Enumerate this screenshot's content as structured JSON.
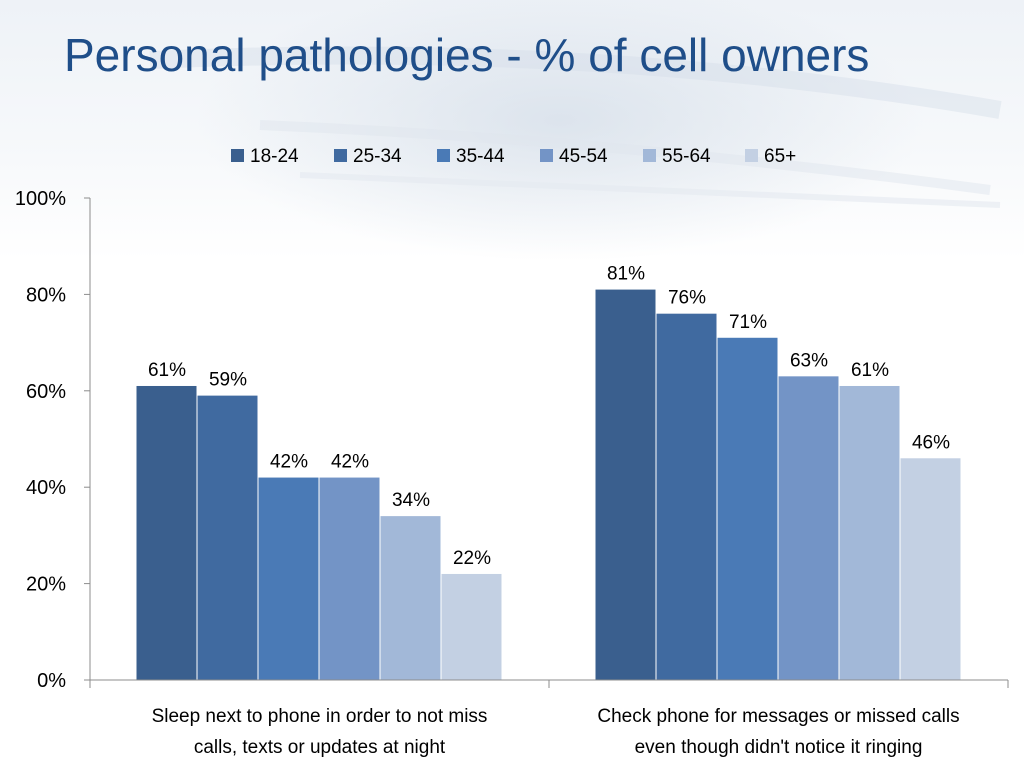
{
  "slide": {
    "title": "Personal pathologies - % of cell owners"
  },
  "chart_data": {
    "type": "bar",
    "title": "",
    "xlabel": "",
    "ylabel": "",
    "ylim": [
      0,
      100
    ],
    "yticks": [
      "0%",
      "20%",
      "40%",
      "60%",
      "80%",
      "100%"
    ],
    "grid": false,
    "legend_position": "top",
    "categories": [
      [
        "Sleep next to phone in order to not miss",
        "calls, texts or updates at night"
      ],
      [
        "Check phone for messages or missed calls",
        "even though didn't notice it ringing"
      ]
    ],
    "series": [
      {
        "name": "18-24",
        "color": "#3a5f8e",
        "values": [
          61,
          81
        ],
        "labels": [
          "61%",
          "81%"
        ]
      },
      {
        "name": "25-34",
        "color": "#406aa0",
        "values": [
          59,
          76
        ],
        "labels": [
          "59%",
          "76%"
        ]
      },
      {
        "name": "35-44",
        "color": "#4a7ab6",
        "values": [
          42,
          71
        ],
        "labels": [
          "42%",
          "71%"
        ]
      },
      {
        "name": "45-54",
        "color": "#7394c6",
        "values": [
          42,
          63
        ],
        "labels": [
          "42%",
          "63%"
        ]
      },
      {
        "name": "55-64",
        "color": "#a2b8d8",
        "values": [
          34,
          61
        ],
        "labels": [
          "34%",
          "61%"
        ]
      },
      {
        "name": "65+",
        "color": "#c3d0e3",
        "values": [
          22,
          46
        ],
        "labels": [
          "22%",
          "46%"
        ]
      }
    ]
  }
}
